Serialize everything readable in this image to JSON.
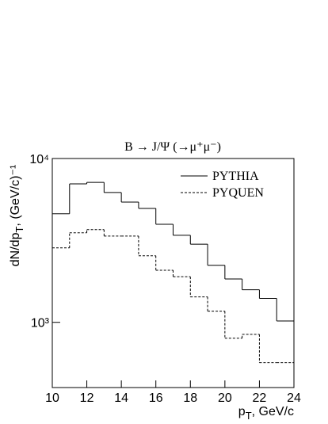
{
  "chart_data": {
    "type": "histogram",
    "title": "B → J/Ψ (→μ⁺μ⁻)",
    "x_label": [
      "p",
      "T",
      ", GeV/c"
    ],
    "y_label": [
      "dN/dp",
      "T",
      ", (GeV/c)⁻¹"
    ],
    "bins": [
      10,
      11,
      12,
      13,
      14,
      15,
      16,
      17,
      18,
      19,
      20,
      21,
      22,
      23,
      24
    ],
    "series": [
      {
        "name": "PYTHIA",
        "color": "#000000",
        "dash": "solid",
        "values": [
          4600,
          7000,
          7150,
          6200,
          5420,
          4960,
          3970,
          3400,
          3000,
          2230,
          1840,
          1580,
          1400,
          1020
        ]
      },
      {
        "name": "PYQUEN",
        "color": "#000000",
        "dash": "dashed",
        "values": [
          2850,
          3520,
          3680,
          3360,
          3360,
          2550,
          2080,
          1900,
          1430,
          1170,
          800,
          845,
          567,
          567
        ]
      }
    ],
    "xlim": [
      10,
      24
    ],
    "xticks": [
      10,
      12,
      14,
      16,
      18,
      20,
      22,
      24
    ],
    "ylim": [
      400,
      10000
    ],
    "yticks": [
      {
        "value": 1000,
        "label": "10³"
      },
      {
        "value": 10000,
        "label": "10⁴"
      }
    ],
    "log_y": true,
    "legend": "top-right"
  }
}
